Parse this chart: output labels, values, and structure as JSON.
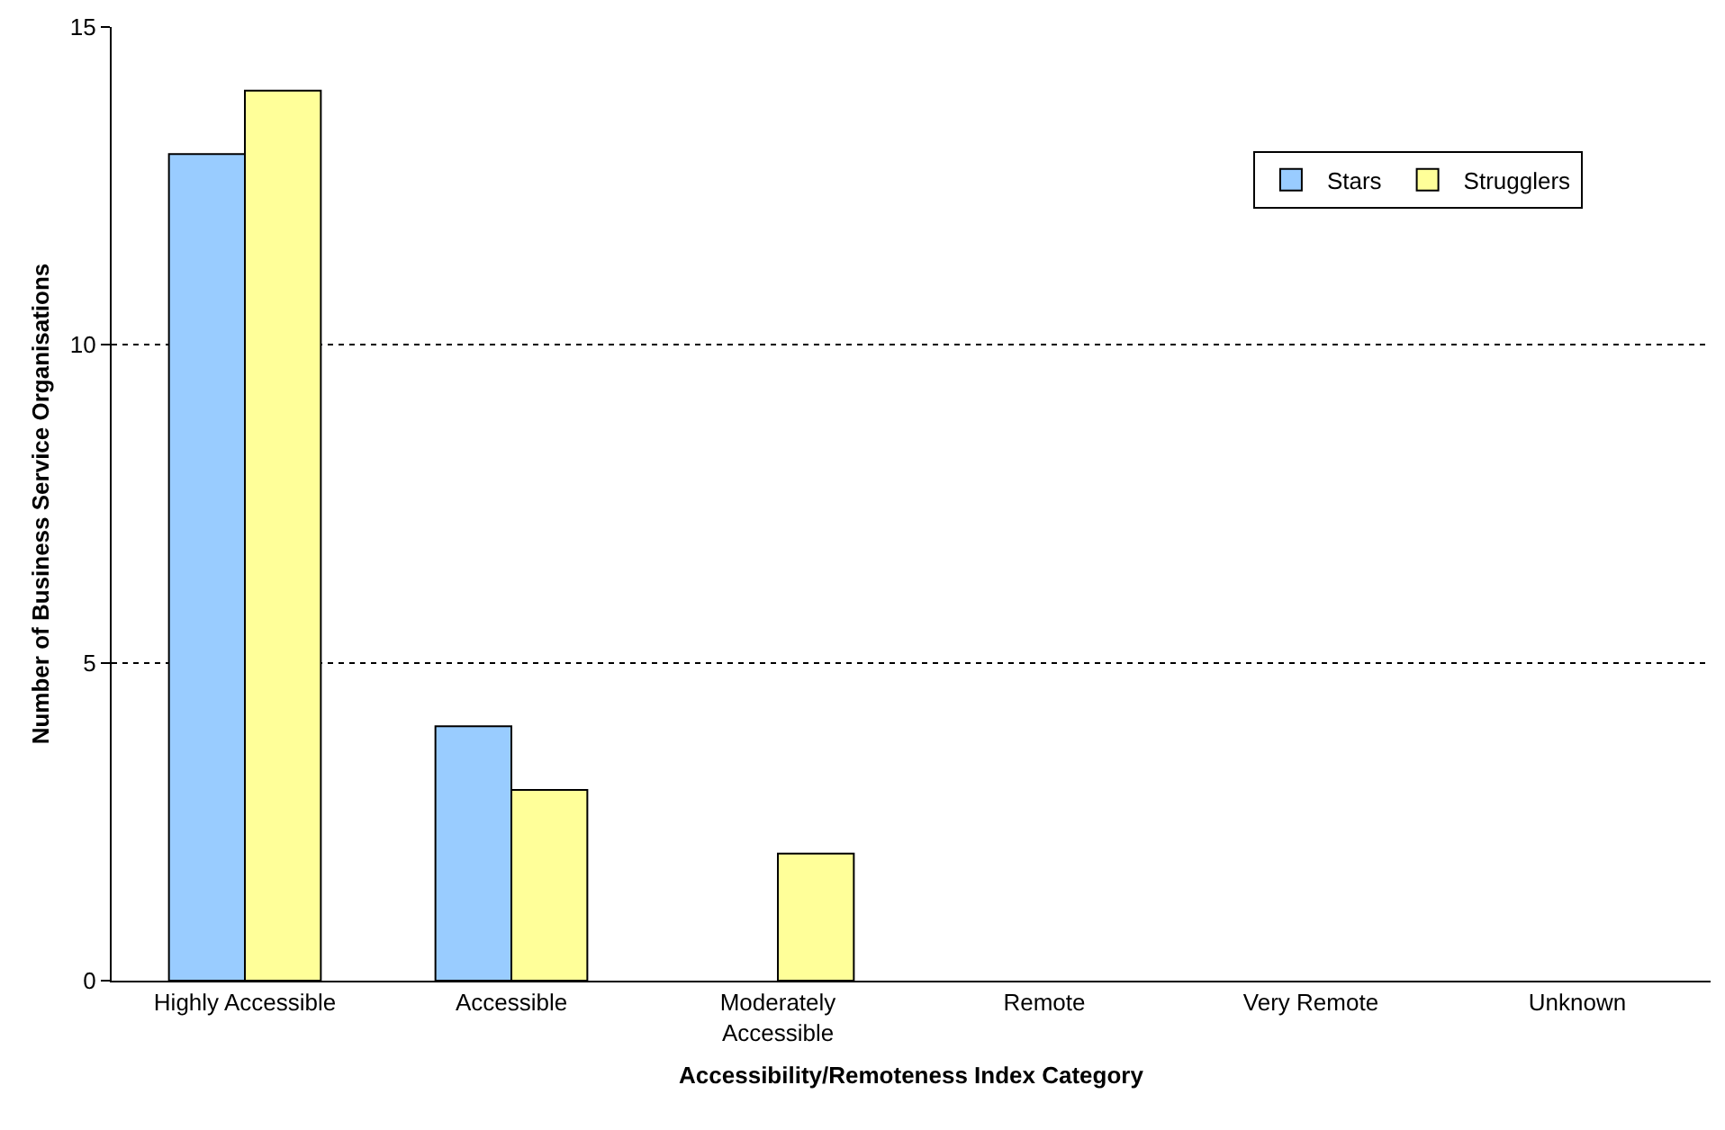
{
  "chart_data": {
    "type": "bar",
    "xlabel": "Accessibility/Remoteness Index Category",
    "ylabel": "Number of Business Service Organisations",
    "categories": [
      "Highly Accessible",
      "Accessible",
      "Moderately Accessible",
      "Remote",
      "Very Remote",
      "Unknown"
    ],
    "series": [
      {
        "name": "Stars",
        "color": "#99ccff",
        "values": [
          13,
          4,
          0,
          0,
          0,
          0
        ]
      },
      {
        "name": "Strugglers",
        "color": "#ffff99",
        "values": [
          14,
          3,
          2,
          0,
          0,
          0
        ]
      }
    ],
    "ylim": [
      0,
      15
    ],
    "yticks": [
      0,
      5,
      10,
      15
    ],
    "grid": "y",
    "line_style": "dotted",
    "legend": "top right"
  }
}
